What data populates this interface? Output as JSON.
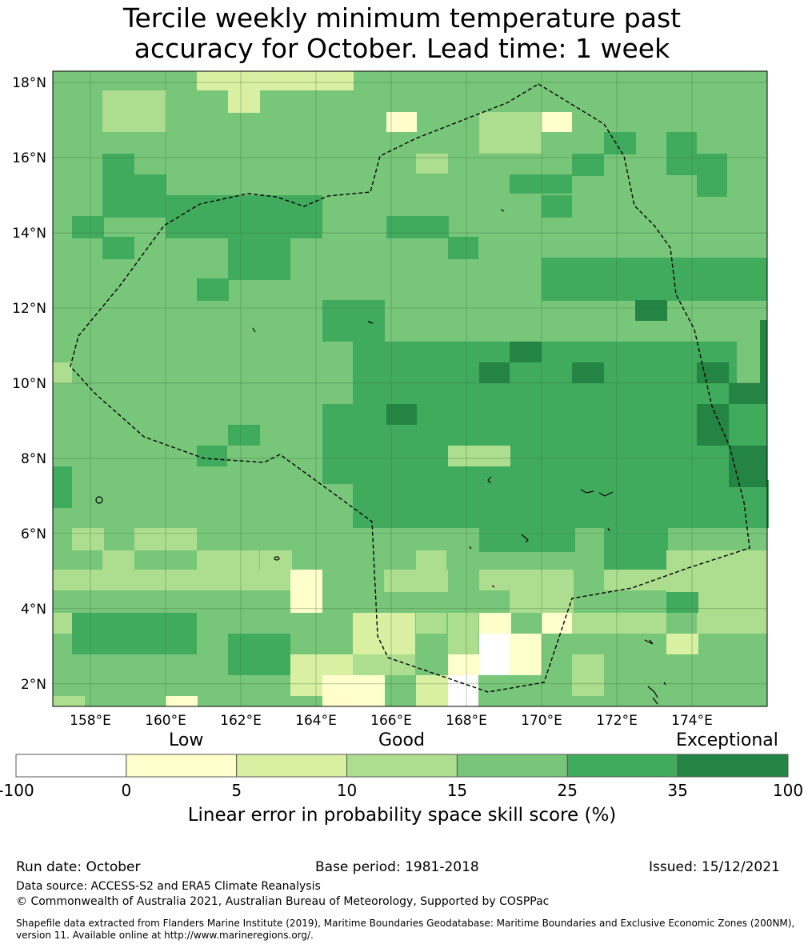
{
  "title": {
    "line1": "Tercile weekly minimum temperature past",
    "line2": "accuracy for October. Lead time: 1 week"
  },
  "map": {
    "lon_range": [
      157,
      176
    ],
    "lat_range": [
      1.4,
      18.3
    ],
    "lon_ticks": [
      "158°E",
      "160°E",
      "162°E",
      "164°E",
      "166°E",
      "168°E",
      "170°E",
      "172°E",
      "174°E"
    ],
    "lat_ticks": [
      "2°N",
      "4°N",
      "6°N",
      "8°N",
      "10°N",
      "12°N",
      "14°N",
      "16°N",
      "18°N"
    ],
    "grid": true,
    "boundary_style": "dashed"
  },
  "colorbar": {
    "categories": [
      "Low",
      "Good",
      "Exceptional"
    ],
    "ticks": [
      "-100",
      "0",
      "5",
      "10",
      "15",
      "25",
      "35",
      "100"
    ],
    "colors": [
      "#ffffff",
      "#ffffcc",
      "#d9f0a3",
      "#addd8e",
      "#78c679",
      "#41ab5d",
      "#238443"
    ],
    "label": "Linear error in probability space skill score (%)"
  },
  "footer": {
    "run_date": "Run date: October",
    "base_period": "Base period: 1981-2018",
    "issued": "Issued: 15/12/2021",
    "data_source": "Data source: ACCESS-S2 and ERA5 Climate Reanalysis",
    "copyright": "© Commonwealth of Australia 2021, Australian Bureau of Meteorology, Supported by COSPPac",
    "shapefile_note": "Shapefile data extracted from Flanders Marine Institute (2019), Maritime Boundaries Geodatabase: Maritime Boundaries and Exclusive Economic Zones (200NM), version 11. Available online at http://www.marineregions.org/."
  }
}
